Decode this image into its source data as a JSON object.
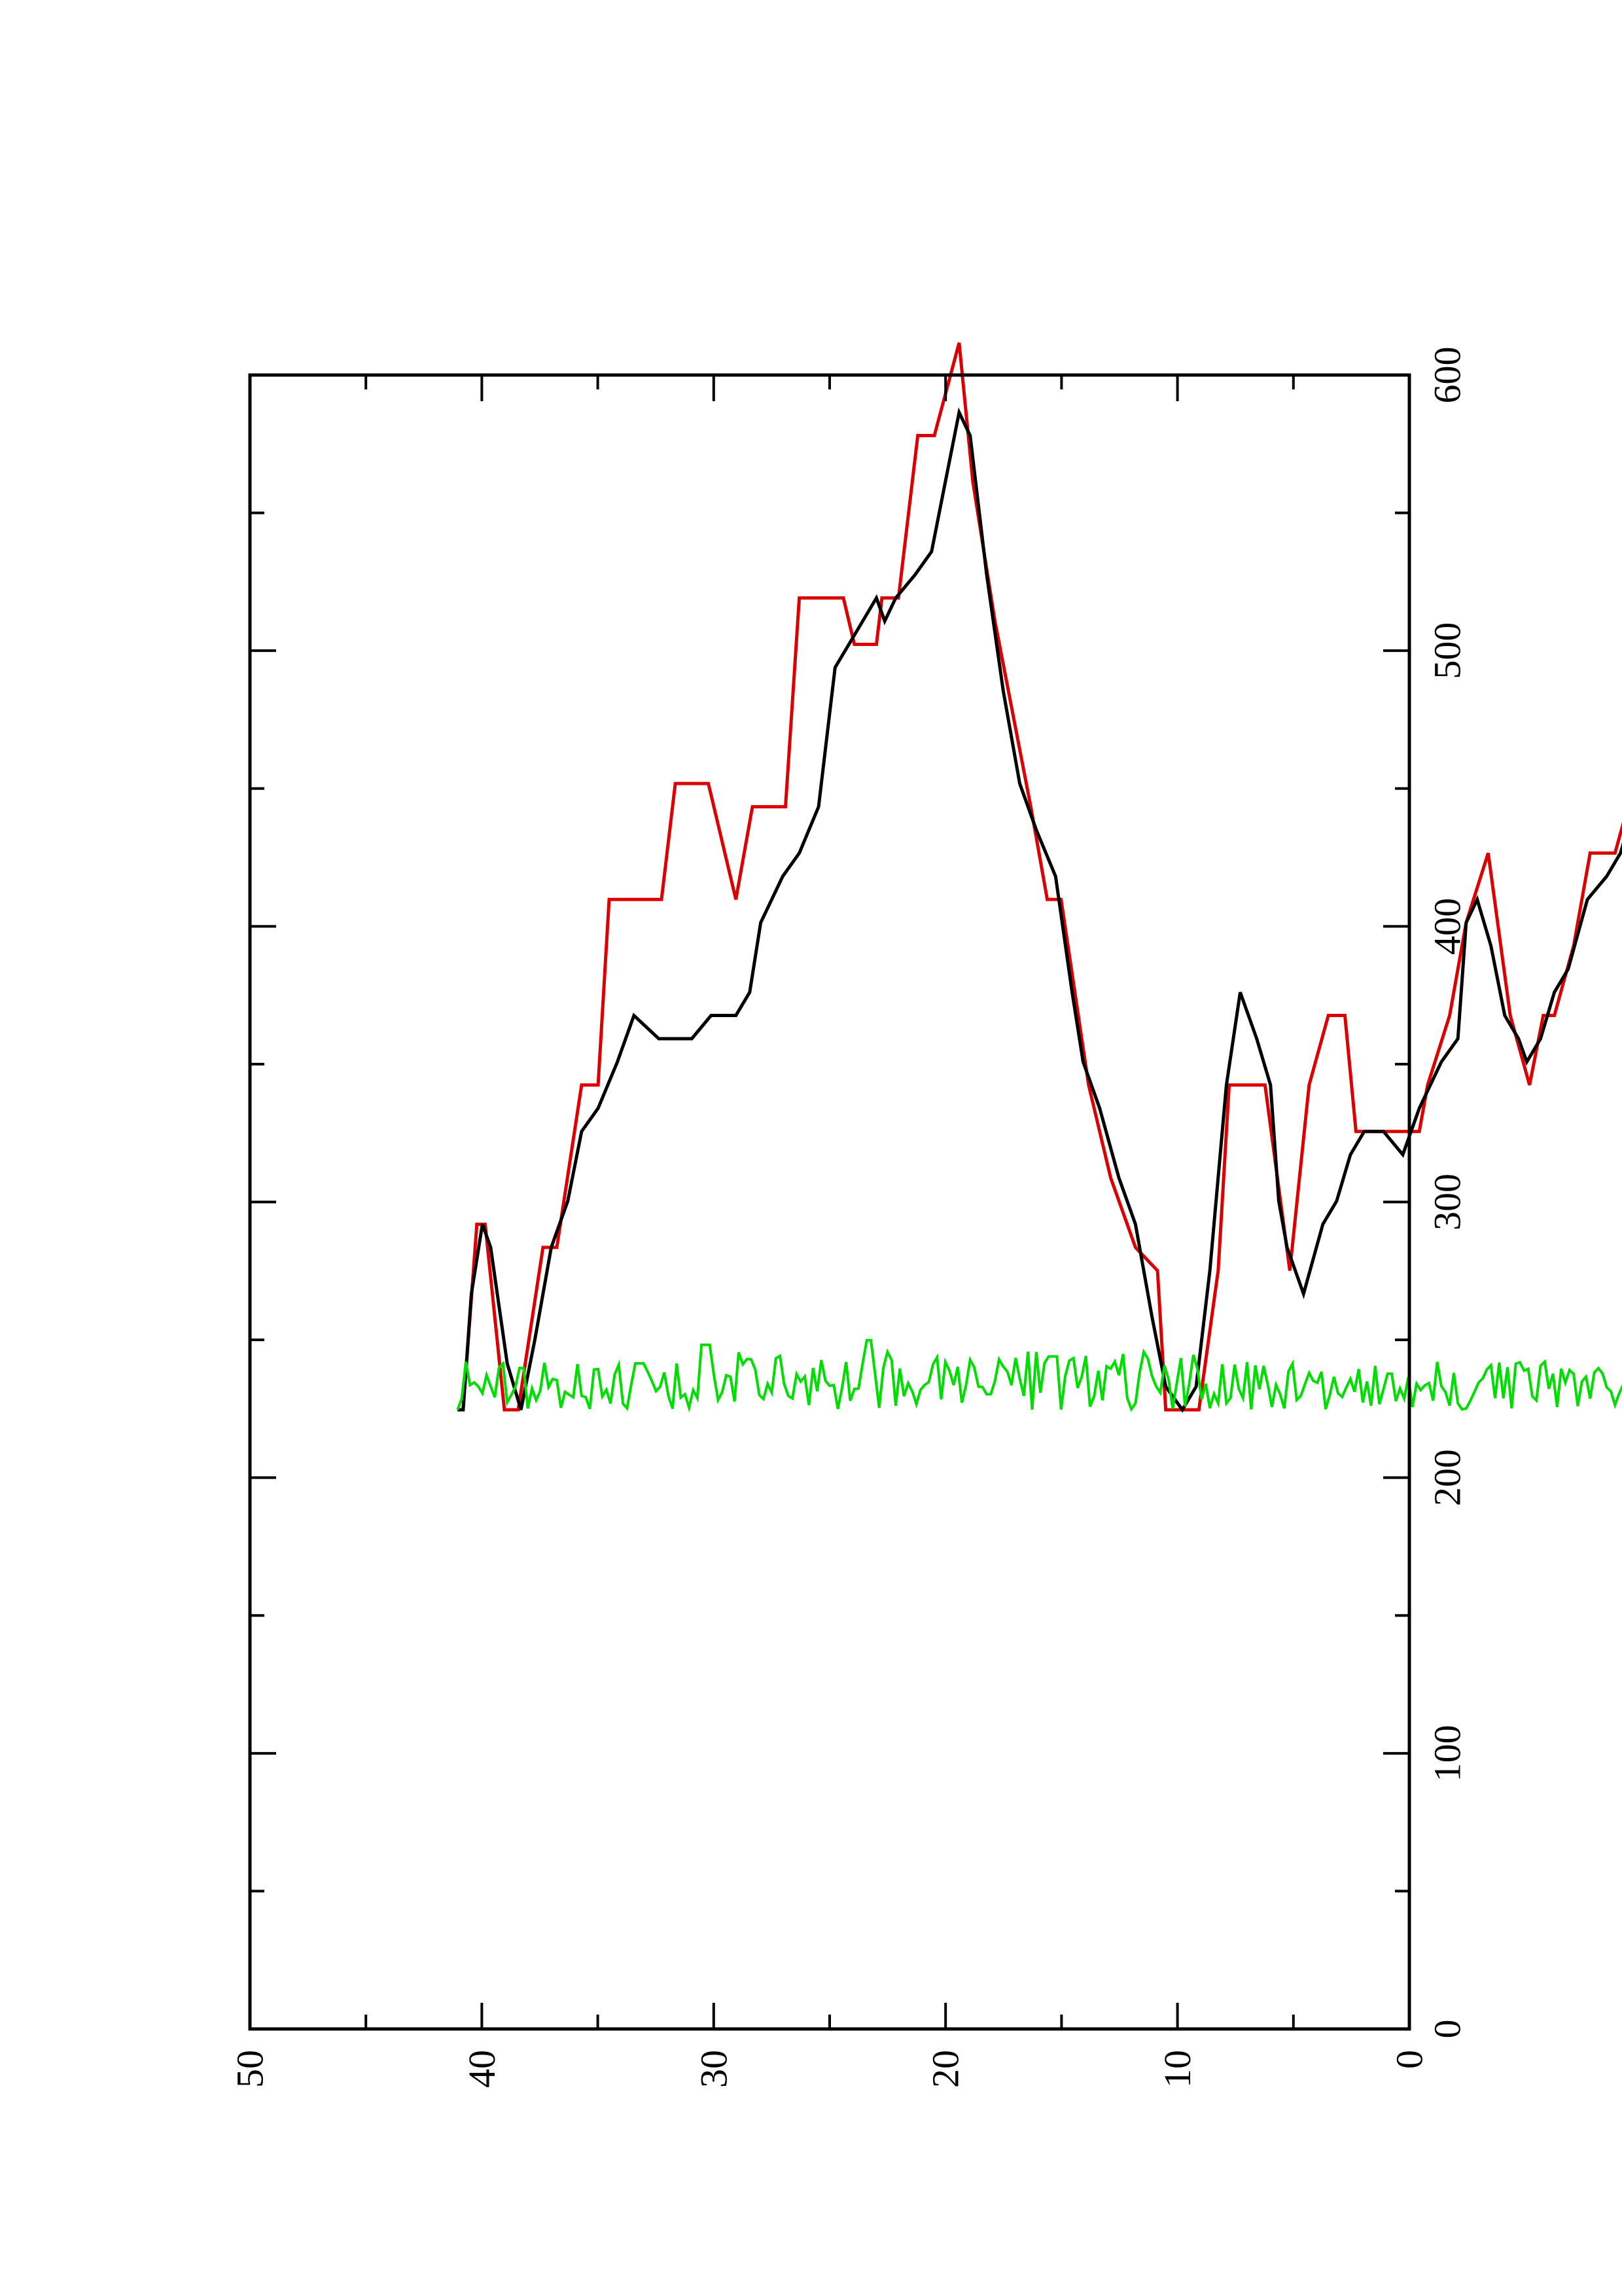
{
  "chart_data": {
    "type": "line",
    "orientation": "rotated-90-counterclockwise",
    "title": "",
    "xlabel": "",
    "ylabel": "",
    "xlim": [
      0,
      600
    ],
    "ylim": [
      0,
      50
    ],
    "x_ticks": [
      "0",
      "100",
      "200",
      "300",
      "400",
      "500",
      "600"
    ],
    "y_ticks": [
      "0",
      "10",
      "20",
      "30",
      "40",
      "50"
    ],
    "grid": false,
    "legend": "none",
    "series": [
      {
        "color": "#dd0000",
        "style": "step",
        "points": [
          [
            0,
            0
          ],
          [
            3,
            6
          ],
          [
            17,
            14
          ],
          [
            33,
            6
          ],
          [
            34,
            6
          ],
          [
            44,
            12
          ],
          [
            49,
            24
          ],
          [
            58,
            29
          ],
          [
            66,
            33
          ],
          [
            79,
            29
          ],
          [
            80,
            24
          ],
          [
            84,
            24
          ],
          [
            87,
            27
          ],
          [
            91,
            27
          ],
          [
            93,
            24
          ],
          [
            100,
            27
          ],
          [
            105,
            30
          ],
          [
            112,
            33
          ],
          [
            116,
            39
          ],
          [
            130,
            39
          ],
          [
            134,
            35
          ],
          [
            137,
            30
          ],
          [
            143,
            27
          ],
          [
            150,
            24
          ],
          [
            159,
            24
          ],
          [
            165,
            20
          ],
          [
            172,
            17
          ],
          [
            176,
            17
          ],
          [
            181,
            14
          ],
          [
            188,
            17
          ],
          [
            196,
            24
          ],
          [
            204,
            21
          ],
          [
            210,
            17
          ],
          [
            218,
            14
          ],
          [
            221,
            12
          ],
          [
            244,
            12
          ],
          [
            248,
            17
          ],
          [
            254,
            17
          ],
          [
            261,
            14
          ],
          [
            268,
            6
          ],
          [
            277,
            14
          ],
          [
            290,
            14
          ],
          [
            294,
            6
          ],
          [
            301,
            0
          ],
          [
            313,
            0
          ],
          [
            316,
            6
          ],
          [
            324,
            7
          ],
          [
            333,
            10
          ],
          [
            341,
            14
          ],
          [
            351,
            22
          ],
          [
            356,
            22
          ],
          [
            362,
            26
          ],
          [
            375,
            34
          ],
          [
            383,
            40
          ],
          [
            388,
            46
          ],
          [
            397,
            42
          ],
          [
            403,
            42
          ],
          [
            410,
            35
          ],
          [
            416,
            35
          ],
          [
            418,
            33
          ],
          [
            426,
            33
          ],
          [
            430,
            35
          ],
          [
            446,
            35
          ],
          [
            451,
            26
          ],
          [
            463,
            26
          ],
          [
            469,
            22
          ],
          [
            479,
            27
          ],
          [
            491,
            27
          ],
          [
            496,
            22
          ],
          [
            515,
            22
          ],
          [
            519,
            14
          ],
          [
            525,
            14
          ],
          [
            534,
            7
          ],
          [
            539,
            7
          ],
          [
            548,
            0
          ],
          [
            553,
            0
          ],
          [
            560,
            8
          ],
          [
            563,
            8
          ],
          [
            568,
            0
          ],
          [
            570,
            0
          ]
        ]
      },
      {
        "color": "#000000",
        "style": "line",
        "points": [
          [
            0,
            0
          ],
          [
            5,
            4
          ],
          [
            12,
            6
          ],
          [
            22,
            6
          ],
          [
            30,
            7
          ],
          [
            36,
            10
          ],
          [
            41,
            12
          ],
          [
            45,
            16
          ],
          [
            50,
            21
          ],
          [
            56,
            24
          ],
          [
            63,
            27
          ],
          [
            70,
            28
          ],
          [
            75,
            27
          ],
          [
            79,
            25
          ],
          [
            82,
            23
          ],
          [
            84,
            22
          ],
          [
            88,
            22
          ],
          [
            92,
            24
          ],
          [
            100,
            25
          ],
          [
            103,
            28
          ],
          [
            110,
            30
          ],
          [
            115,
            33
          ],
          [
            120,
            35
          ],
          [
            126,
            35
          ],
          [
            131,
            34
          ],
          [
            137,
            31
          ],
          [
            143,
            26
          ],
          [
            148,
            24
          ],
          [
            153,
            23
          ],
          [
            160,
            22
          ],
          [
            167,
            19
          ],
          [
            172,
            18
          ],
          [
            177,
            16
          ],
          [
            182,
            15
          ],
          [
            185,
            16
          ],
          [
            190,
            17
          ],
          [
            195,
            20
          ],
          [
            200,
            22
          ],
          [
            204,
            21
          ],
          [
            207,
            16
          ],
          [
            213,
            15
          ],
          [
            221,
            13
          ],
          [
            227,
            11
          ],
          [
            234,
            12
          ],
          [
            241,
            12
          ],
          [
            246,
            11
          ],
          [
            251,
            9
          ],
          [
            256,
            8
          ],
          [
            263,
            5
          ],
          [
            269,
            7
          ],
          [
            272,
            9
          ],
          [
            275,
            14
          ],
          [
            280,
            16
          ],
          [
            286,
            18
          ],
          [
            291,
            14
          ],
          [
            297,
            6
          ],
          [
            302,
            1
          ],
          [
            307,
            0
          ],
          [
            313,
            1
          ],
          [
            318,
            4
          ],
          [
            324,
            8
          ],
          [
            330,
            10
          ],
          [
            337,
            13
          ],
          [
            343,
            15
          ],
          [
            347,
            18
          ],
          [
            353,
            23
          ],
          [
            360,
            25
          ],
          [
            366,
            27
          ],
          [
            372,
            31
          ],
          [
            378,
            36
          ],
          [
            384,
            42
          ],
          [
            388,
            43
          ],
          [
            393,
            40
          ],
          [
            398,
            37
          ],
          [
            404,
            36
          ],
          [
            411,
            35
          ],
          [
            415,
            34
          ],
          [
            418,
            35
          ],
          [
            423,
            34
          ],
          [
            428,
            33
          ],
          [
            433,
            32
          ],
          [
            439,
            26
          ],
          [
            446,
            24
          ],
          [
            452,
            23
          ],
          [
            460,
            21
          ],
          [
            464,
            18
          ],
          [
            469,
            17
          ],
          [
            478,
            17
          ],
          [
            485,
            16
          ],
          [
            497,
            16
          ],
          [
            506,
            17
          ],
          [
            512,
            15
          ],
          [
            519,
            13
          ],
          [
            525,
            12
          ],
          [
            530,
            9
          ],
          [
            536,
            7
          ],
          [
            542,
            3
          ],
          [
            547,
            0
          ],
          [
            552,
            2
          ],
          [
            558,
            7
          ],
          [
            561,
            8
          ],
          [
            565,
            5
          ],
          [
            568,
            0
          ],
          [
            570,
            0
          ]
        ]
      },
      {
        "color": "#00dd00",
        "style": "line",
        "noise_seed": 7,
        "regions": [
          [
            0,
            15,
            0.3
          ],
          [
            15,
            28,
            0.7
          ],
          [
            28,
            120,
            1.5
          ],
          [
            120,
            300,
            1.3
          ],
          [
            300,
            470,
            1.6
          ],
          [
            470,
            570,
            1.3
          ]
        ],
        "spikes": [
          [
            97,
            3.5
          ],
          [
            421,
            3.0
          ],
          [
            480,
            2.8
          ],
          [
            504,
            2.0
          ],
          [
            354,
            2.3
          ]
        ]
      }
    ]
  }
}
